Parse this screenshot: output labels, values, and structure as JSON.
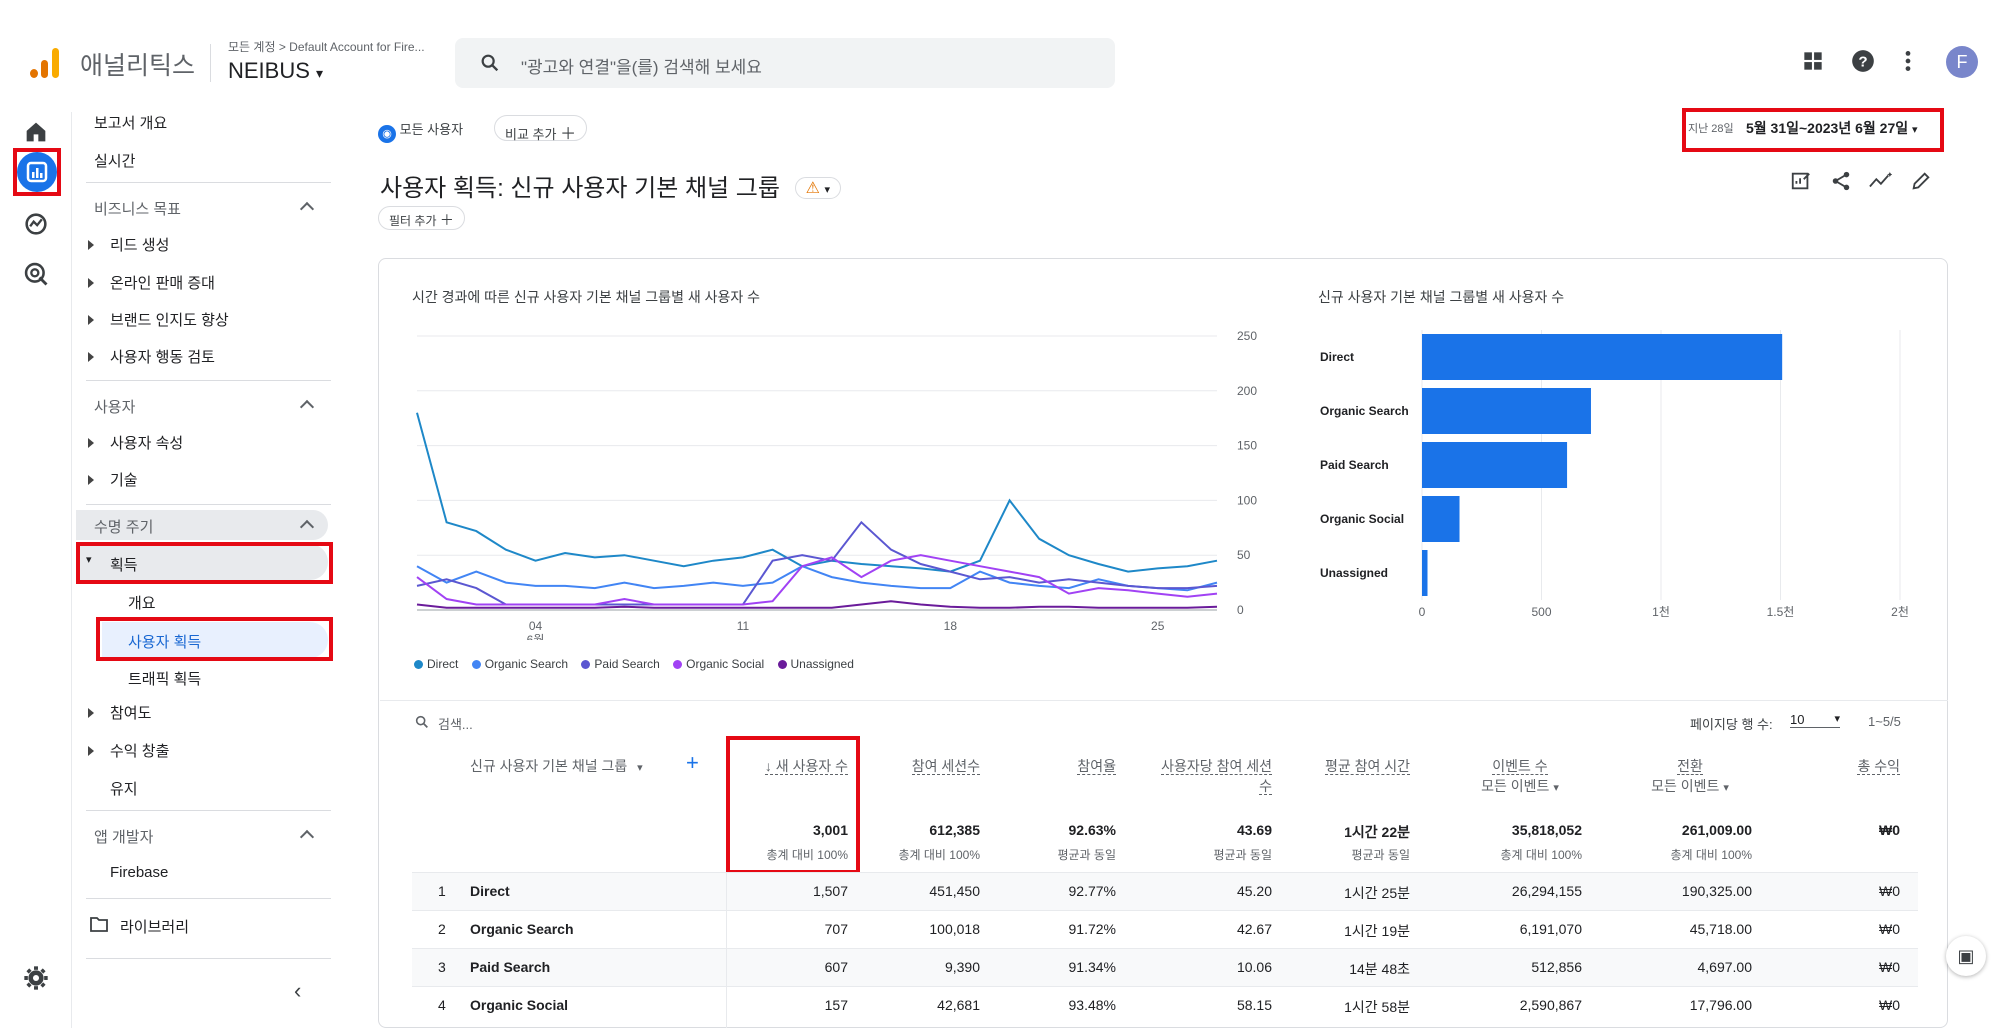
{
  "app": {
    "title": "애널리틱스",
    "account_path": "모든 계정 > Default Account for Fire...",
    "property": "NEIBUS",
    "search_placeholder": "\"광고와 연결\"을(를) 검색해 보세요",
    "avatar_letter": "F"
  },
  "nav": {
    "overview": "보고서 개요",
    "realtime": "실시간",
    "business_goals": "비즈니스 목표",
    "goal_items": [
      "리드 생성",
      "온라인 판매 증대",
      "브랜드 인지도 향상",
      "사용자 행동 검토"
    ],
    "user_section": "사용자",
    "user_items": [
      "사용자 속성",
      "기술"
    ],
    "lifecycle": "수명 주기",
    "acquisition": "획득",
    "acq_items": [
      "개요",
      "사용자 획득",
      "트래픽 획득"
    ],
    "engagement": "참여도",
    "monetization": "수익 창출",
    "retention": "유지",
    "developer": "앱 개발자",
    "firebase": "Firebase",
    "library": "라이브러리"
  },
  "header": {
    "segment_chip": "모든 사용자",
    "compare_chip": "비교 추가",
    "date_prefix": "지난 28일",
    "date_range": "5월 31일~2023년 6월 27일",
    "report_title": "사용자 획득: 신규 사용자 기본 채널 그룹",
    "filter_chip": "필터 추가"
  },
  "charts": {
    "line_title": "시간 경과에 따른 신규 사용자 기본 채널 그룹별 새 사용자 수",
    "bar_title": "신규 사용자 기본 채널 그룹별 새 사용자 수",
    "line_y_ticks": [
      "250",
      "200",
      "150",
      "100",
      "50",
      "0"
    ],
    "line_x_ticks": [
      "04",
      "11",
      "18",
      "25"
    ],
    "line_x_month": "6월",
    "bar_x_ticks": [
      "0",
      "500",
      "1천",
      "1.5천",
      "2천"
    ],
    "legend": [
      "Direct",
      "Organic Search",
      "Paid Search",
      "Organic Social",
      "Unassigned"
    ]
  },
  "chart_data": [
    {
      "type": "line",
      "x": [
        "5/31",
        "6/1",
        "6/2",
        "6/3",
        "6/4",
        "6/5",
        "6/6",
        "6/7",
        "6/8",
        "6/9",
        "6/10",
        "6/11",
        "6/12",
        "6/13",
        "6/14",
        "6/15",
        "6/16",
        "6/17",
        "6/18",
        "6/19",
        "6/20",
        "6/21",
        "6/22",
        "6/23",
        "6/24",
        "6/25",
        "6/26",
        "6/27"
      ],
      "ylim": [
        0,
        250
      ],
      "series": [
        {
          "name": "Direct",
          "color": "#1e88c8",
          "values": [
            180,
            80,
            72,
            55,
            45,
            52,
            48,
            50,
            45,
            40,
            45,
            48,
            55,
            40,
            45,
            42,
            40,
            38,
            35,
            45,
            100,
            65,
            50,
            42,
            35,
            38,
            40,
            45
          ]
        },
        {
          "name": "Organic Search",
          "color": "#4285f4",
          "values": [
            40,
            25,
            35,
            25,
            22,
            22,
            20,
            25,
            20,
            22,
            25,
            22,
            25,
            40,
            30,
            25,
            22,
            20,
            20,
            35,
            25,
            22,
            20,
            28,
            22,
            20,
            18,
            25
          ]
        },
        {
          "name": "Paid Search",
          "color": "#5b57d1",
          "values": [
            22,
            28,
            20,
            5,
            5,
            5,
            5,
            5,
            5,
            5,
            5,
            5,
            45,
            50,
            45,
            80,
            55,
            42,
            35,
            28,
            30,
            25,
            28,
            25,
            22,
            20,
            20,
            22
          ]
        },
        {
          "name": "Organic Social",
          "color": "#a142f4",
          "values": [
            30,
            10,
            5,
            5,
            5,
            5,
            5,
            10,
            5,
            5,
            5,
            5,
            8,
            40,
            48,
            30,
            45,
            50,
            45,
            40,
            35,
            30,
            15,
            20,
            18,
            15,
            12,
            15
          ]
        },
        {
          "name": "Unassigned",
          "color": "#6a1b9a",
          "values": [
            5,
            2,
            2,
            2,
            2,
            2,
            2,
            3,
            2,
            2,
            2,
            2,
            2,
            2,
            2,
            5,
            8,
            5,
            3,
            2,
            2,
            3,
            3,
            2,
            2,
            2,
            2,
            3
          ]
        }
      ]
    },
    {
      "type": "bar",
      "categories": [
        "Direct",
        "Organic Search",
        "Paid Search",
        "Organic Social",
        "Unassigned"
      ],
      "values": [
        1507,
        707,
        607,
        157,
        23
      ],
      "xlim": [
        0,
        2000
      ]
    }
  ],
  "table": {
    "search_placeholder": "검색...",
    "rows_per_page_label": "페이지당 행 수:",
    "rows_per_page": "10",
    "pagination": "1~5/5",
    "dimension_header": "신규 사용자 기본 채널 그룹",
    "columns": [
      {
        "label": "↓ 새 사용자 수",
        "total": "3,001",
        "sub": "총계 대비 100%"
      },
      {
        "label": "참여 세션수",
        "total": "612,385",
        "sub": "총계 대비 100%"
      },
      {
        "label": "참여율",
        "total": "92.63%",
        "sub": "평균과 동일"
      },
      {
        "label": "사용자당 참여 세션수",
        "total": "43.69",
        "sub": "평균과 동일"
      },
      {
        "label": "평균 참여 시간",
        "total": "1시간 22분",
        "sub": "평균과 동일"
      },
      {
        "label": "이벤트 수",
        "label2": "모든 이벤트",
        "total": "35,818,052",
        "sub": "총계 대비 100%"
      },
      {
        "label": "전환",
        "label2": "모든 이벤트",
        "total": "261,009.00",
        "sub": "총계 대비 100%"
      },
      {
        "label": "총 수익",
        "total": "₩0",
        "sub": ""
      }
    ],
    "rows": [
      {
        "idx": "1",
        "name": "Direct",
        "vals": [
          "1,507",
          "451,450",
          "92.77%",
          "45.20",
          "1시간 25분",
          "26,294,155",
          "190,325.00",
          "₩0"
        ]
      },
      {
        "idx": "2",
        "name": "Organic Search",
        "vals": [
          "707",
          "100,018",
          "91.72%",
          "42.67",
          "1시간 19분",
          "6,191,070",
          "45,718.00",
          "₩0"
        ]
      },
      {
        "idx": "3",
        "name": "Paid Search",
        "vals": [
          "607",
          "9,390",
          "91.34%",
          "10.06",
          "14분 48초",
          "512,856",
          "4,697.00",
          "₩0"
        ]
      },
      {
        "idx": "4",
        "name": "Organic Social",
        "vals": [
          "157",
          "42,681",
          "93.48%",
          "58.15",
          "1시간 58분",
          "2,590,867",
          "17,796.00",
          "₩0"
        ]
      }
    ]
  }
}
